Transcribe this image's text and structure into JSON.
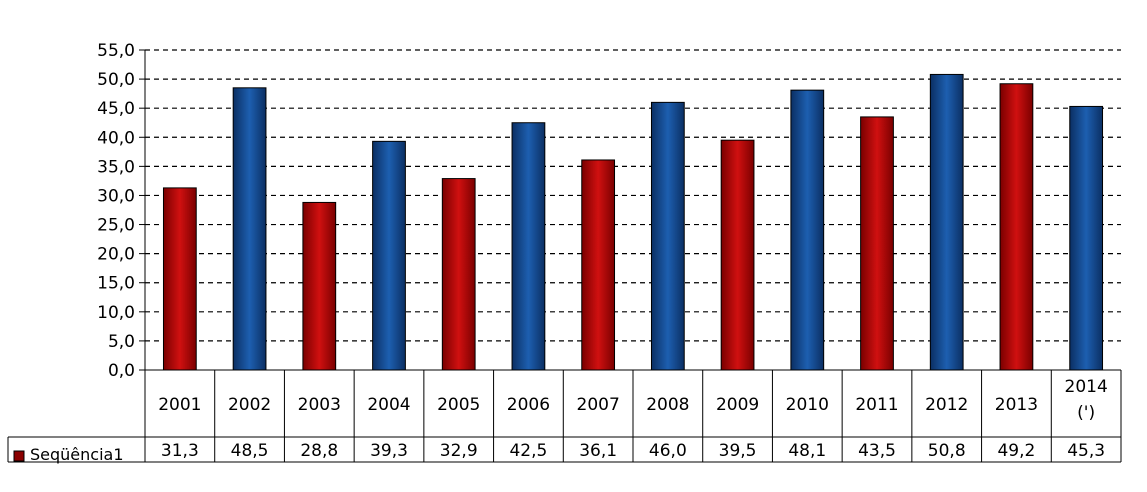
{
  "chart_data": {
    "type": "bar",
    "categories": [
      "2001",
      "2002",
      "2003",
      "2004",
      "2005",
      "2006",
      "2007",
      "2008",
      "2009",
      "2010",
      "2011",
      "2012",
      "2013",
      "2014"
    ],
    "category_notes": [
      "",
      "",
      "",
      "",
      "",
      "",
      "",
      "",
      "",
      "",
      "",
      "",
      "",
      "(')"
    ],
    "series": [
      {
        "name": "Seqüência1",
        "values": [
          31.3,
          48.5,
          28.8,
          39.3,
          32.9,
          42.5,
          36.1,
          46.0,
          39.5,
          48.1,
          43.5,
          50.8,
          49.2,
          45.3
        ],
        "value_labels": [
          "31,3",
          "48,5",
          "28,8",
          "39,3",
          "32,9",
          "42,5",
          "36,1",
          "46,0",
          "39,5",
          "48,1",
          "43,5",
          "50,8",
          "49,2",
          "45,3"
        ]
      }
    ],
    "bar_colors": [
      "red",
      "blue",
      "red",
      "blue",
      "red",
      "blue",
      "red",
      "blue",
      "red",
      "blue",
      "red",
      "blue",
      "red",
      "blue"
    ],
    "ylim": [
      0,
      55
    ],
    "yticks": [
      "0,0",
      "5,0",
      "10,0",
      "15,0",
      "20,0",
      "25,0",
      "30,0",
      "35,0",
      "40,0",
      "45,0",
      "50,0",
      "55,0"
    ],
    "grid": "dashed horizontal",
    "legend_placement": "data table, left",
    "data_table": true
  },
  "colors": {
    "red": "#b80000",
    "red_dark": "#6a0000",
    "blue": "#134e96",
    "blue_dark": "#08234d",
    "legend_key": "#8b0000"
  }
}
